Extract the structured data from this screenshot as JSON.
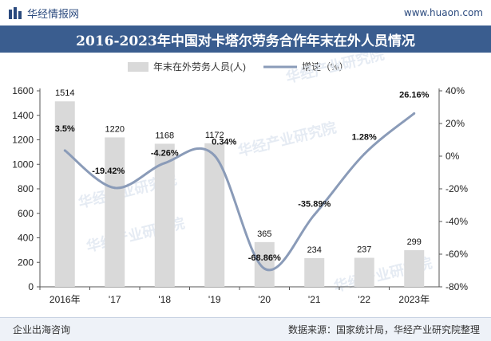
{
  "header": {
    "brand": "华经情报网",
    "url": "www.huaon.com",
    "title": "2016-2023年中国对卡塔尔劳务合作年末在外人员情况"
  },
  "footer": {
    "left": "企业出海咨询",
    "right": "数据来源：国家统计局，华经产业研究院整理"
  },
  "watermark": "华经产业研究院",
  "chart_data": {
    "type": "bar+line",
    "title": "2016-2023年中国对卡塔尔劳务合作年末在外人员情况",
    "categories": [
      "2016年",
      "'17",
      "'18",
      "'19",
      "'20",
      "'21",
      "'22",
      "2023年"
    ],
    "series": [
      {
        "name": "年末在外劳务人员(人)",
        "type": "bar",
        "axis": "left",
        "values": [
          1514,
          1220,
          1168,
          1172,
          365,
          234,
          237,
          299
        ],
        "labels": [
          "1514",
          "1220",
          "1168",
          "1172",
          "365",
          "234",
          "237",
          "299"
        ],
        "color": "#d9d9d9"
      },
      {
        "name": "增速（%）",
        "type": "line",
        "axis": "right",
        "values": [
          3.5,
          -19.42,
          -4.26,
          0.34,
          -68.86,
          -35.89,
          1.28,
          26.16
        ],
        "labels": [
          "3.5%",
          "-19.42%",
          "-4.26%",
          "0.34%",
          "-68.86%",
          "-35.89%",
          "1.28%",
          "26.16%"
        ],
        "color": "#8a9bb8"
      }
    ],
    "y_left": {
      "min": 0,
      "max": 1600,
      "ticks": [
        "0",
        "200",
        "400",
        "600",
        "800",
        "1000",
        "1200",
        "1400",
        "1600"
      ]
    },
    "y_right": {
      "min": -80,
      "max": 40,
      "ticks": [
        "-80%",
        "-60%",
        "-40%",
        "-20%",
        "0%",
        "20%",
        "40%"
      ]
    },
    "legend_position": "top-center"
  }
}
